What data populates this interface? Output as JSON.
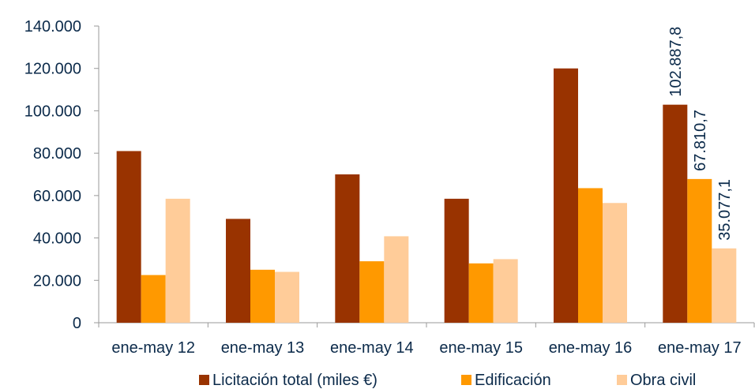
{
  "chart_data": {
    "type": "bar",
    "categories": [
      "ene-may 12",
      "ene-may 13",
      "ene-may 14",
      "ene-may 15",
      "ene-may 16",
      "ene-may 17"
    ],
    "series": [
      {
        "name": "Licitación total (miles €)",
        "color": "#993300",
        "values": [
          81000,
          49000,
          70000,
          58500,
          120000,
          102887.8
        ]
      },
      {
        "name": "Edificación",
        "color": "#FF9900",
        "values": [
          22500,
          25000,
          29000,
          28000,
          63500,
          67810.7
        ]
      },
      {
        "name": "Obra civil",
        "color": "#FFCC99",
        "values": [
          58500,
          24000,
          40800,
          30000,
          56500,
          35077.1
        ]
      }
    ],
    "ylim": [
      0,
      140000
    ],
    "yticks": [
      0,
      20000,
      40000,
      60000,
      80000,
      100000,
      120000,
      140000
    ],
    "ytick_labels": [
      "0",
      "20.000",
      "40.000",
      "60.000",
      "80.000",
      "100.000",
      "120.000",
      "140.000"
    ],
    "data_labels": [
      {
        "series": 0,
        "category": 5,
        "text": "102.887,8"
      },
      {
        "series": 1,
        "category": 5,
        "text": "67.810,7"
      },
      {
        "series": 2,
        "category": 5,
        "text": "35.077,1"
      }
    ],
    "legend_position": "bottom",
    "grid": false,
    "title": "",
    "xlabel": "",
    "ylabel": ""
  }
}
